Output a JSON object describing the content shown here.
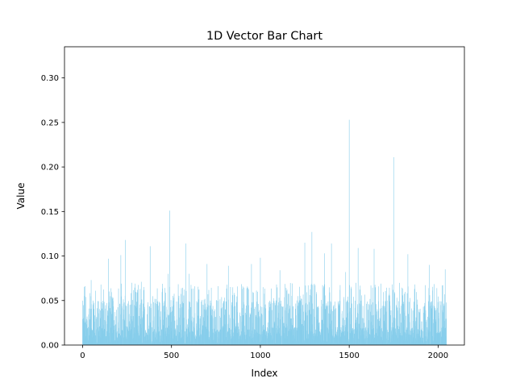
{
  "chart_data": {
    "type": "bar",
    "title": "1D Vector Bar Chart",
    "xlabel": "Index",
    "ylabel": "Value",
    "xlim": [
      -102,
      2148
    ],
    "ylim": [
      0,
      0.335
    ],
    "grid": false,
    "legend": "none",
    "bar_color": "#87ceeb",
    "x_ticks": [
      0,
      500,
      1000,
      1500,
      2000
    ],
    "x_tick_labels": [
      "0",
      "500",
      "1000",
      "1500",
      "2000"
    ],
    "y_ticks": [
      0,
      0.05,
      0.1,
      0.15,
      0.2,
      0.25,
      0.3
    ],
    "y_tick_labels": [
      "0.00",
      "0.05",
      "0.10",
      "0.15",
      "0.20",
      "0.25",
      "0.30"
    ],
    "n_points": 2048,
    "notable_values": [
      {
        "x": 10,
        "y": 0.055
      },
      {
        "x": 48,
        "y": 0.073
      },
      {
        "x": 145,
        "y": 0.097
      },
      {
        "x": 215,
        "y": 0.101
      },
      {
        "x": 240,
        "y": 0.118
      },
      {
        "x": 330,
        "y": 0.071
      },
      {
        "x": 380,
        "y": 0.111
      },
      {
        "x": 480,
        "y": 0.08
      },
      {
        "x": 490,
        "y": 0.151
      },
      {
        "x": 580,
        "y": 0.114
      },
      {
        "x": 600,
        "y": 0.08
      },
      {
        "x": 700,
        "y": 0.091
      },
      {
        "x": 820,
        "y": 0.089
      },
      {
        "x": 950,
        "y": 0.091
      },
      {
        "x": 1000,
        "y": 0.098
      },
      {
        "x": 1110,
        "y": 0.084
      },
      {
        "x": 1250,
        "y": 0.115
      },
      {
        "x": 1290,
        "y": 0.127
      },
      {
        "x": 1360,
        "y": 0.103
      },
      {
        "x": 1400,
        "y": 0.114
      },
      {
        "x": 1480,
        "y": 0.082
      },
      {
        "x": 1500,
        "y": 0.253
      },
      {
        "x": 1550,
        "y": 0.109
      },
      {
        "x": 1640,
        "y": 0.108
      },
      {
        "x": 1750,
        "y": 0.211
      },
      {
        "x": 1830,
        "y": 0.102
      },
      {
        "x": 1950,
        "y": 0.09
      },
      {
        "x": 2040,
        "y": 0.085
      }
    ]
  }
}
